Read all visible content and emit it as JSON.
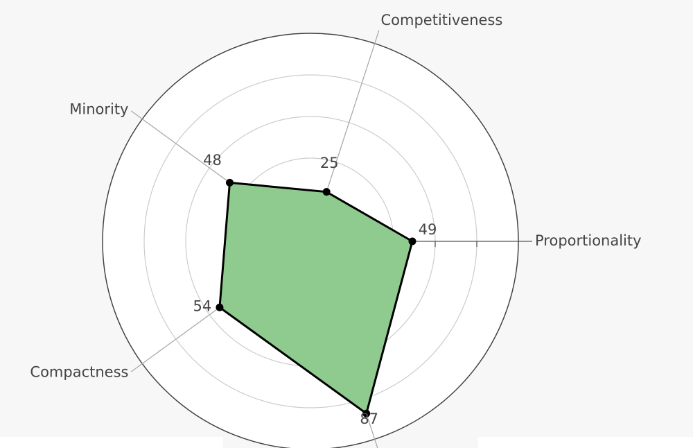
{
  "chart_data": {
    "type": "radar",
    "categories": [
      "Proportionality",
      "Competitiveness",
      "Minority",
      "Compactness",
      null
    ],
    "values": [
      49,
      25,
      48,
      54,
      87
    ],
    "color": "#8fcb8f",
    "rlim": [
      0,
      100
    ],
    "rticks": [
      20,
      40,
      60,
      80,
      100
    ]
  }
}
